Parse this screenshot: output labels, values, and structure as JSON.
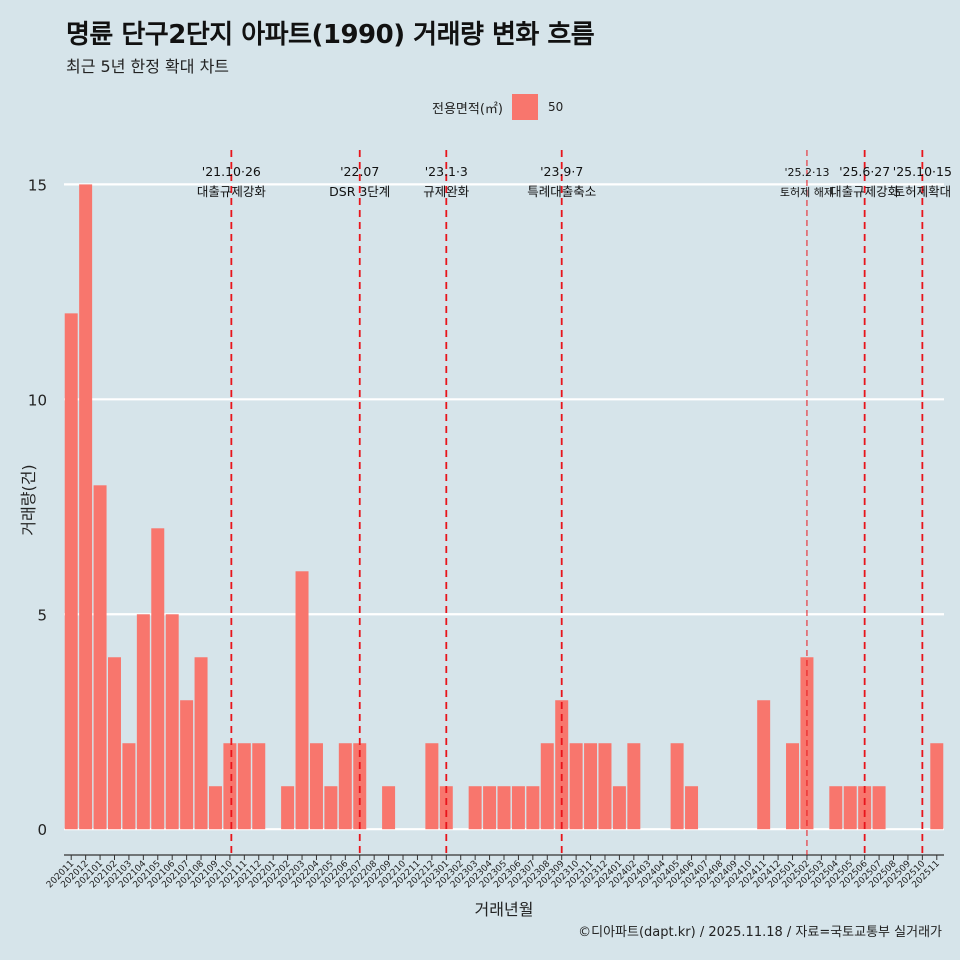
{
  "title": "명륜 단구2단지 아파트(1990) 거래량 변화 흐름",
  "subtitle": "최근 5년 한정 확대 차트",
  "legend": {
    "title": "전용면적(㎡)",
    "label": "50",
    "color": "#f8766d"
  },
  "caption": "©디아파트(dapt.kr) / 2025.11.18 / 자료=국토교통부 실거래가",
  "chart_data": {
    "type": "bar",
    "title": "명륜 단구2단지 아파트(1990) 거래량 변화 흐름",
    "xlabel": "거래년월",
    "ylabel": "거래량(건)",
    "ylim": [
      -0.6,
      15.8
    ],
    "yticks": [
      0,
      5,
      10,
      15
    ],
    "grid": true,
    "series": [
      {
        "name": "50",
        "color": "#f8766d"
      }
    ],
    "categories": [
      "202011",
      "202012",
      "202101",
      "202102",
      "202103",
      "202104",
      "202105",
      "202106",
      "202107",
      "202108",
      "202109",
      "202110",
      "202111",
      "202112",
      "202201",
      "202202",
      "202203",
      "202204",
      "202205",
      "202206",
      "202207",
      "202208",
      "202209",
      "202210",
      "202211",
      "202212",
      "202301",
      "202302",
      "202303",
      "202304",
      "202305",
      "202306",
      "202307",
      "202308",
      "202309",
      "202310",
      "202311",
      "202312",
      "202401",
      "202402",
      "202403",
      "202404",
      "202405",
      "202406",
      "202407",
      "202408",
      "202409",
      "202410",
      "202411",
      "202412",
      "202501",
      "202502",
      "202503",
      "202504",
      "202505",
      "202506",
      "202507",
      "202508",
      "202509",
      "202510",
      "202511"
    ],
    "values": [
      12,
      15,
      8,
      4,
      2,
      5,
      7,
      5,
      3,
      4,
      1,
      2,
      2,
      2,
      0,
      1,
      6,
      2,
      1,
      2,
      2,
      0,
      1,
      0,
      0,
      2,
      1,
      0,
      1,
      1,
      1,
      1,
      1,
      2,
      3,
      2,
      2,
      2,
      1,
      2,
      0,
      0,
      2,
      1,
      0,
      0,
      0,
      0,
      3,
      0,
      2,
      4,
      0,
      1,
      1,
      1,
      1,
      0,
      0,
      0,
      2
    ],
    "annotations": [
      {
        "date_label": "'21.10·26",
        "text": "대출규제강화",
        "x_index": 11.1,
        "style": "dashed"
      },
      {
        "date_label": "'22.07",
        "text": "DSR 3단계",
        "x_index": 20.0,
        "style": "dashed"
      },
      {
        "date_label": "'23.1·3",
        "text": "규제완화",
        "x_index": 26.0,
        "style": "dashed"
      },
      {
        "date_label": "'23.9·7",
        "text": "특례대출축소",
        "x_index": 34.0,
        "style": "dashed"
      },
      {
        "date_label": "'25.2·13",
        "text": "토허제 해제",
        "x_index": 51.0,
        "style": "thin"
      },
      {
        "date_label": "'25.6·27",
        "text": "대출규제강화",
        "x_index": 55.0,
        "style": "dashed"
      },
      {
        "date_label": "'25.10·15",
        "text": "토허제확대",
        "x_index": 59.0,
        "style": "dashed"
      }
    ]
  }
}
